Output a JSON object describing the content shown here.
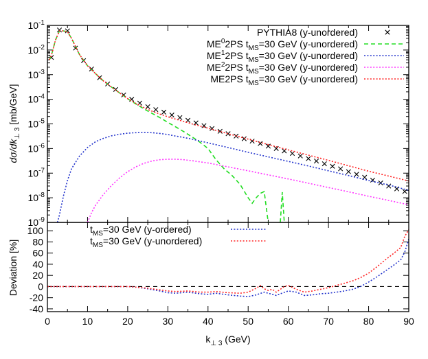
{
  "chart_data": [
    {
      "type": "line",
      "yscale": "log",
      "xlim": [
        0,
        90
      ],
      "ylim": [
        1e-09,
        0.1
      ],
      "ytick_values": [
        1e-09,
        1e-08,
        1e-07,
        1e-06,
        1e-05,
        0.0001,
        0.001,
        0.01,
        0.1
      ],
      "ytick_labels": [
        {
          "base": "10",
          "exp": "-9"
        },
        {
          "base": "10",
          "exp": "-8"
        },
        {
          "base": "10",
          "exp": "-7"
        },
        {
          "base": "10",
          "exp": "-6"
        },
        {
          "base": "10",
          "exp": "-5"
        },
        {
          "base": "10",
          "exp": "-4"
        },
        {
          "base": "10",
          "exp": "-3"
        },
        {
          "base": "10",
          "exp": "-2"
        },
        {
          "base": "10",
          "exp": "-1"
        }
      ],
      "ylabel": {
        "main": "dσ/dk",
        "sub": "⊥ 3",
        "unit": "  [mb/GeV]"
      },
      "legend_position": "top-right",
      "series": [
        {
          "name_parts": [
            "PYTHIA8 (y-unordered)"
          ],
          "style": "points-x",
          "color": "#000000",
          "x": [
            1,
            3,
            5,
            7,
            9,
            11,
            13,
            15,
            17,
            19,
            21,
            23,
            25,
            27,
            29,
            31,
            33,
            35,
            37,
            39,
            41,
            43,
            45,
            47,
            49,
            51,
            53,
            55,
            57,
            59,
            61,
            63,
            65,
            67,
            69,
            71,
            73,
            75,
            77,
            79,
            81,
            83,
            85,
            87,
            89
          ],
          "y": [
            0.005,
            0.065,
            0.06,
            0.012,
            0.0037,
            0.0017,
            0.00075,
            0.00042,
            0.00025,
            0.00015,
            0.0001,
            7e-05,
            5e-05,
            3.8e-05,
            3e-05,
            2.3e-05,
            1.8e-05,
            1.4e-05,
            1.1e-05,
            8.5e-06,
            6.5e-06,
            5e-06,
            4e-06,
            3.2e-06,
            2.5e-06,
            2e-06,
            1.6e-06,
            1.25e-06,
            1e-06,
            8e-07,
            6.3e-07,
            5e-07,
            3.9e-07,
            3.1e-07,
            2.4e-07,
            1.9e-07,
            1.5e-07,
            1.15e-07,
            9e-08,
            6.8e-08,
            5.2e-08,
            4e-08,
            3e-08,
            2.3e-08,
            1.8e-08
          ]
        },
        {
          "name_parts": [
            "ME",
            "^0",
            "2PS t",
            "_MS",
            "=30 GeV (y-unordered)"
          ],
          "style": "dashed",
          "color": "#22dd22",
          "segments": [
            {
              "x": [
                0.5,
                1,
                2,
                3,
                4,
                5,
                6,
                7,
                8,
                10,
                12,
                14,
                16,
                18,
                20,
                22,
                24,
                26,
                28,
                30,
                32,
                34,
                36,
                38,
                40,
                42,
                44,
                46,
                48,
                50,
                51,
                52,
                53,
                54,
                55
              ],
              "y": [
                0.004,
                0.006,
                0.025,
                0.06,
                0.06,
                0.055,
                0.03,
                0.014,
                0.0065,
                0.0023,
                0.0011,
                0.00055,
                0.00031,
                0.00018,
                0.000105,
                6.5e-05,
                4.1e-05,
                2.7e-05,
                1.8e-05,
                1.15e-05,
                7.5e-06,
                4.8e-06,
                3e-06,
                1.8e-06,
                1e-06,
                3.5e-07,
                1.5e-07,
                8e-08,
                3.5e-08,
                1e-08,
                6e-09,
                1e-08,
                1.5e-08,
                1.8e-08,
                1e-09
              ]
            },
            {
              "x": [
                58,
                58.5,
                59
              ],
              "y": [
                1e-09,
                1.7e-08,
                1e-09
              ]
            }
          ]
        },
        {
          "name_parts": [
            "ME",
            "^1",
            "2PS t",
            "_MS",
            "=30 GeV (y-unordered)"
          ],
          "style": "dotted",
          "color": "#2233cc",
          "x": [
            2.5,
            3,
            4,
            5,
            6,
            8,
            10,
            12,
            14,
            16,
            18,
            20,
            22,
            24,
            26,
            28,
            30,
            32,
            34,
            36,
            40,
            45,
            50,
            55,
            60,
            65,
            70,
            75,
            80,
            85,
            90
          ],
          "y": [
            1e-09,
            2e-09,
            1.2e-08,
            5e-08,
            1.5e-07,
            5e-07,
            1.1e-06,
            1.9e-06,
            2.6e-06,
            3.3e-06,
            3.8e-06,
            4.2e-06,
            4.4e-06,
            4.5e-06,
            4.4e-06,
            4.1e-06,
            3.7e-06,
            3.2e-06,
            2.8e-06,
            2.4e-06,
            1.7e-06,
            1.1e-06,
            7e-07,
            4.6e-07,
            3e-07,
            1.95e-07,
            1.25e-07,
            8e-08,
            5e-08,
            3.3e-08,
            2e-08
          ]
        },
        {
          "name_parts": [
            "ME",
            "^2",
            "2PS t",
            "_MS",
            "=30 GeV (y-unordered)"
          ],
          "style": "dotted",
          "color": "#ff33ff",
          "x": [
            10,
            11,
            12,
            14,
            16,
            18,
            20,
            22,
            24,
            26,
            28,
            30,
            32,
            34,
            36,
            40,
            45,
            50,
            55,
            60,
            65,
            70,
            75,
            80,
            85,
            90
          ],
          "y": [
            1e-09,
            2.5e-09,
            5e-09,
            1.4e-08,
            3.2e-08,
            6.5e-08,
            1.15e-07,
            1.8e-07,
            2.5e-07,
            3.1e-07,
            3.5e-07,
            3.7e-07,
            3.7e-07,
            3.5e-07,
            3.2e-07,
            2.6e-07,
            1.8e-07,
            1.25e-07,
            8.5e-08,
            5.8e-08,
            3.9e-08,
            2.6e-08,
            1.75e-08,
            1.15e-08,
            7.8e-09,
            5.2e-09
          ]
        },
        {
          "name_parts": [
            "ME2PS t",
            "_MS",
            "=30 GeV (y-unordered)"
          ],
          "style": "dotted",
          "color": "#ff2222",
          "x": [
            0.5,
            1,
            2,
            3,
            4,
            5,
            6,
            7,
            8,
            10,
            12,
            14,
            16,
            18,
            20,
            22,
            24,
            26,
            28,
            30,
            32,
            34,
            36,
            40,
            45,
            50,
            55,
            60,
            65,
            70,
            75,
            80,
            85,
            90
          ],
          "y": [
            0.004,
            0.006,
            0.025,
            0.06,
            0.06,
            0.055,
            0.03,
            0.014,
            0.0065,
            0.0023,
            0.0011,
            0.00055,
            0.00031,
            0.00018,
            0.000106,
            6.8e-05,
            4.6e-05,
            3.3e-05,
            2.5e-05,
            1.95e-05,
            1.55e-05,
            1.25e-05,
            1e-05,
            6.7e-06,
            4e-06,
            2.4e-06,
            1.45e-06,
            8.8e-07,
            5.4e-07,
            3.3e-07,
            2e-07,
            1.2e-07,
            7.6e-08,
            4.8e-08
          ]
        }
      ]
    },
    {
      "type": "line",
      "xlim": [
        0,
        90
      ],
      "ylim": [
        -45,
        115
      ],
      "xticks": [
        0,
        10,
        20,
        30,
        40,
        50,
        60,
        70,
        80,
        90
      ],
      "yticks": [
        -40,
        -20,
        0,
        20,
        40,
        60,
        80,
        100
      ],
      "xlabel": {
        "main": "k",
        "sub": "⊥ 3",
        "unit": " (GeV)"
      },
      "ylabel": "Deviation [%]",
      "reference_line": 0,
      "legend_position": "top-left",
      "series": [
        {
          "name_parts": [
            "t",
            "_MS",
            "=30 GeV (y-ordered)"
          ],
          "style": "dotted",
          "color": "#2233cc",
          "x": [
            0,
            5,
            10,
            15,
            20,
            22,
            25,
            28,
            30,
            32,
            35,
            38,
            40,
            42,
            45,
            48,
            50,
            52,
            54,
            56,
            57,
            58,
            60,
            62,
            64,
            66,
            68,
            70,
            72,
            74,
            76,
            78,
            80,
            82,
            84,
            86,
            88,
            89,
            90
          ],
          "y": [
            0,
            0,
            0,
            0,
            0,
            -1,
            -4,
            -8,
            -11,
            -12,
            -10,
            -13,
            -14,
            -12,
            -15,
            -17,
            -18,
            -15,
            -10,
            -14,
            -16,
            -13,
            -8,
            -10,
            -16,
            -15,
            -13,
            -12,
            -10,
            -8,
            -5,
            0,
            8,
            17,
            27,
            37,
            48,
            62,
            85
          ]
        },
        {
          "name_parts": [
            "t",
            "_MS",
            "=30 GeV (y-unordered)"
          ],
          "style": "dotted",
          "color": "#ff2222",
          "x": [
            0,
            5,
            10,
            15,
            20,
            22,
            25,
            28,
            30,
            32,
            35,
            38,
            40,
            42,
            45,
            48,
            50,
            52,
            53,
            54,
            55,
            56,
            57,
            58,
            59,
            60,
            62,
            64,
            66,
            68,
            70,
            72,
            74,
            76,
            78,
            80,
            82,
            84,
            86,
            88,
            89,
            90
          ],
          "y": [
            0,
            0,
            0,
            0,
            0,
            -1,
            -3,
            -6,
            -8,
            -9,
            -8,
            -10,
            -10,
            -9,
            -11,
            -12,
            -10,
            -3,
            2,
            -4,
            -7,
            -5,
            -10,
            -5,
            0,
            2,
            -5,
            -10,
            -8,
            -5,
            -2,
            2,
            6,
            10,
            16,
            24,
            35,
            47,
            58,
            70,
            90,
            102
          ]
        }
      ]
    }
  ]
}
